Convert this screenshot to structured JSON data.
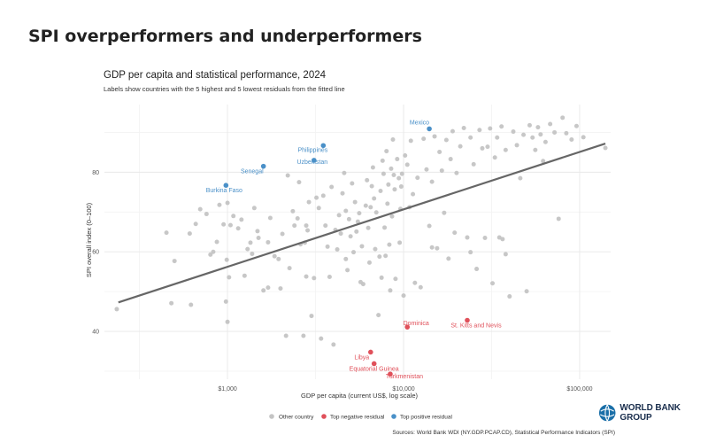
{
  "page": {
    "title": "SPI overperformers and underperformers"
  },
  "brand": {
    "name": "WORLD BANK GROUP",
    "logo_icon": "world-bank-globe-icon",
    "color": "#1a2e4d"
  },
  "chart_data": {
    "type": "scatter",
    "title": "GDP per capita and statistical performance, 2024",
    "subtitle": "Labels show countries with the 5 highest and 5 lowest residuals from the fitted line",
    "xlabel": "GDP per capita (current US$, log scale)",
    "ylabel": "SPI overall index (0–100)",
    "x_scale": "log",
    "xlim": [
      200,
      150000
    ],
    "ylim": [
      28,
      97
    ],
    "x_ticks": [
      {
        "value": 1000,
        "label": "$1,000"
      },
      {
        "value": 10000,
        "label": "$10,000"
      },
      {
        "value": 100000,
        "label": "$100,000"
      }
    ],
    "y_ticks": [
      40,
      60,
      80
    ],
    "grid": true,
    "colors": {
      "other": "#c4c4c4",
      "negative": "#e0505a",
      "positive": "#4a90c8",
      "fit": "#666666"
    },
    "fit_line": {
      "x": [
        240,
        140000
      ],
      "y": [
        47.3,
        87.2
      ]
    },
    "legend": {
      "position": "bottom",
      "entries": [
        {
          "key": "other",
          "label": "Other country"
        },
        {
          "key": "negative",
          "label": "Top negative residual"
        },
        {
          "key": "positive",
          "label": "Top positive residual"
        }
      ]
    },
    "series": [
      {
        "name": "Top positive residual",
        "key": "positive",
        "points": [
          {
            "label": "Mexico",
            "x": 14000,
            "y": 90.9
          },
          {
            "label": "Philippines",
            "x": 3500,
            "y": 86.7
          },
          {
            "label": "Uzbekistan",
            "x": 3100,
            "y": 83.0
          },
          {
            "label": "Senegal",
            "x": 1600,
            "y": 81.5
          },
          {
            "label": "Burkina Faso",
            "x": 980,
            "y": 76.7
          }
        ]
      },
      {
        "name": "Top negative residual",
        "key": "negative",
        "points": [
          {
            "label": "Dominica",
            "x": 10500,
            "y": 41.1
          },
          {
            "label": "St. Kitts and Nevis",
            "x": 23000,
            "y": 42.8
          },
          {
            "label": "Libya",
            "x": 6500,
            "y": 34.8
          },
          {
            "label": "Equatorial Guinea",
            "x": 6800,
            "y": 31.9
          },
          {
            "label": "Turkmenistan",
            "x": 8400,
            "y": 29.3
          }
        ]
      },
      {
        "name": "Other country",
        "key": "other",
        "points": [
          {
            "x": 235,
            "y": 45.6
          },
          {
            "x": 450,
            "y": 64.8
          },
          {
            "x": 480,
            "y": 47.1
          },
          {
            "x": 500,
            "y": 57.7
          },
          {
            "x": 610,
            "y": 64.6
          },
          {
            "x": 620,
            "y": 46.7
          },
          {
            "x": 660,
            "y": 67.0
          },
          {
            "x": 700,
            "y": 70.7
          },
          {
            "x": 760,
            "y": 69.5
          },
          {
            "x": 800,
            "y": 59.3
          },
          {
            "x": 830,
            "y": 60.0
          },
          {
            "x": 870,
            "y": 62.5
          },
          {
            "x": 900,
            "y": 71.8
          },
          {
            "x": 950,
            "y": 66.9
          },
          {
            "x": 980,
            "y": 47.5
          },
          {
            "x": 990,
            "y": 58.0
          },
          {
            "x": 1000,
            "y": 72.3
          },
          {
            "x": 1000,
            "y": 42.4
          },
          {
            "x": 1020,
            "y": 53.6
          },
          {
            "x": 1040,
            "y": 66.7
          },
          {
            "x": 1080,
            "y": 69.0
          },
          {
            "x": 1150,
            "y": 65.9
          },
          {
            "x": 1200,
            "y": 68.1
          },
          {
            "x": 1250,
            "y": 54.0
          },
          {
            "x": 1300,
            "y": 60.7
          },
          {
            "x": 1350,
            "y": 62.3
          },
          {
            "x": 1380,
            "y": 59.5
          },
          {
            "x": 1420,
            "y": 71.0
          },
          {
            "x": 1480,
            "y": 65.2
          },
          {
            "x": 1500,
            "y": 63.5
          },
          {
            "x": 1600,
            "y": 50.3
          },
          {
            "x": 1700,
            "y": 51.0
          },
          {
            "x": 1750,
            "y": 68.5
          },
          {
            "x": 1850,
            "y": 58.9
          },
          {
            "x": 1950,
            "y": 58.2
          },
          {
            "x": 2000,
            "y": 50.8
          },
          {
            "x": 2050,
            "y": 64.5
          },
          {
            "x": 2150,
            "y": 38.9
          },
          {
            "x": 2200,
            "y": 79.2
          },
          {
            "x": 2250,
            "y": 55.9
          },
          {
            "x": 2350,
            "y": 70.2
          },
          {
            "x": 2400,
            "y": 66.6
          },
          {
            "x": 2500,
            "y": 68.4
          },
          {
            "x": 2550,
            "y": 77.5
          },
          {
            "x": 2600,
            "y": 61.9
          },
          {
            "x": 2700,
            "y": 38.9
          },
          {
            "x": 2750,
            "y": 62.3
          },
          {
            "x": 2800,
            "y": 53.8
          },
          {
            "x": 2850,
            "y": 65.4
          },
          {
            "x": 2900,
            "y": 72.5
          },
          {
            "x": 3000,
            "y": 43.9
          },
          {
            "x": 3100,
            "y": 53.4
          },
          {
            "x": 3200,
            "y": 73.6
          },
          {
            "x": 3300,
            "y": 71.0
          },
          {
            "x": 3400,
            "y": 38.2
          },
          {
            "x": 3500,
            "y": 74.1
          },
          {
            "x": 3600,
            "y": 66.6
          },
          {
            "x": 3700,
            "y": 61.3
          },
          {
            "x": 3800,
            "y": 53.7
          },
          {
            "x": 3900,
            "y": 76.3
          },
          {
            "x": 4000,
            "y": 36.7
          },
          {
            "x": 4100,
            "y": 65.5
          },
          {
            "x": 4200,
            "y": 60.6
          },
          {
            "x": 4300,
            "y": 69.2
          },
          {
            "x": 4400,
            "y": 64.6
          },
          {
            "x": 4500,
            "y": 74.7
          },
          {
            "x": 4600,
            "y": 79.8
          },
          {
            "x": 4700,
            "y": 70.3
          },
          {
            "x": 4800,
            "y": 55.4
          },
          {
            "x": 4900,
            "y": 68.2
          },
          {
            "x": 5000,
            "y": 63.9
          },
          {
            "x": 5100,
            "y": 77.2
          },
          {
            "x": 5200,
            "y": 59.9
          },
          {
            "x": 5300,
            "y": 72.5
          },
          {
            "x": 5400,
            "y": 65.1
          },
          {
            "x": 5500,
            "y": 67.6
          },
          {
            "x": 5600,
            "y": 69.7
          },
          {
            "x": 5700,
            "y": 52.4
          },
          {
            "x": 5800,
            "y": 61.4
          },
          {
            "x": 5900,
            "y": 51.9
          },
          {
            "x": 6100,
            "y": 71.6
          },
          {
            "x": 6200,
            "y": 78.0
          },
          {
            "x": 6300,
            "y": 66.0
          },
          {
            "x": 6400,
            "y": 57.3
          },
          {
            "x": 6500,
            "y": 71.2
          },
          {
            "x": 6600,
            "y": 76.5
          },
          {
            "x": 6700,
            "y": 81.2
          },
          {
            "x": 6800,
            "y": 73.4
          },
          {
            "x": 6900,
            "y": 60.7
          },
          {
            "x": 7000,
            "y": 69.9
          },
          {
            "x": 7200,
            "y": 44.1
          },
          {
            "x": 7300,
            "y": 58.8
          },
          {
            "x": 7400,
            "y": 75.3
          },
          {
            "x": 7500,
            "y": 53.5
          },
          {
            "x": 7600,
            "y": 82.9
          },
          {
            "x": 7700,
            "y": 79.6
          },
          {
            "x": 7800,
            "y": 66.1
          },
          {
            "x": 7900,
            "y": 59.0
          },
          {
            "x": 8000,
            "y": 85.3
          },
          {
            "x": 8100,
            "y": 72.1
          },
          {
            "x": 8200,
            "y": 76.9
          },
          {
            "x": 8300,
            "y": 61.8
          },
          {
            "x": 8400,
            "y": 50.3
          },
          {
            "x": 8500,
            "y": 80.9
          },
          {
            "x": 8600,
            "y": 68.9
          },
          {
            "x": 8700,
            "y": 88.2
          },
          {
            "x": 8800,
            "y": 79.3
          },
          {
            "x": 8900,
            "y": 75.7
          },
          {
            "x": 9000,
            "y": 53.2
          },
          {
            "x": 9200,
            "y": 83.3
          },
          {
            "x": 9400,
            "y": 78.5
          },
          {
            "x": 9500,
            "y": 62.3
          },
          {
            "x": 9600,
            "y": 70.8
          },
          {
            "x": 9700,
            "y": 76.4
          },
          {
            "x": 9800,
            "y": 79.6
          },
          {
            "x": 10000,
            "y": 49.0
          },
          {
            "x": 10200,
            "y": 84.2
          },
          {
            "x": 10500,
            "y": 81.9
          },
          {
            "x": 10800,
            "y": 71.2
          },
          {
            "x": 11000,
            "y": 87.9
          },
          {
            "x": 11300,
            "y": 74.5
          },
          {
            "x": 11600,
            "y": 52.2
          },
          {
            "x": 12000,
            "y": 78.6
          },
          {
            "x": 12500,
            "y": 51.1
          },
          {
            "x": 13000,
            "y": 88.4
          },
          {
            "x": 13500,
            "y": 80.7
          },
          {
            "x": 14000,
            "y": 66.5
          },
          {
            "x": 14500,
            "y": 77.6
          },
          {
            "x": 15000,
            "y": 89.0
          },
          {
            "x": 15500,
            "y": 60.9
          },
          {
            "x": 16000,
            "y": 85.1
          },
          {
            "x": 16500,
            "y": 80.4
          },
          {
            "x": 17000,
            "y": 69.8
          },
          {
            "x": 17500,
            "y": 88.1
          },
          {
            "x": 18000,
            "y": 58.3
          },
          {
            "x": 18500,
            "y": 83.3
          },
          {
            "x": 19000,
            "y": 90.3
          },
          {
            "x": 19500,
            "y": 64.8
          },
          {
            "x": 20000,
            "y": 79.8
          },
          {
            "x": 21000,
            "y": 86.5
          },
          {
            "x": 22000,
            "y": 91.1
          },
          {
            "x": 23000,
            "y": 63.6
          },
          {
            "x": 24000,
            "y": 88.7
          },
          {
            "x": 25000,
            "y": 82.0
          },
          {
            "x": 26000,
            "y": 55.7
          },
          {
            "x": 27000,
            "y": 90.6
          },
          {
            "x": 28000,
            "y": 86.0
          },
          {
            "x": 29000,
            "y": 63.5
          },
          {
            "x": 30000,
            "y": 86.4
          },
          {
            "x": 31000,
            "y": 91.0
          },
          {
            "x": 32000,
            "y": 52.1
          },
          {
            "x": 33000,
            "y": 83.7
          },
          {
            "x": 34000,
            "y": 88.7
          },
          {
            "x": 35000,
            "y": 63.6
          },
          {
            "x": 36000,
            "y": 91.5
          },
          {
            "x": 38000,
            "y": 85.6
          },
          {
            "x": 40000,
            "y": 48.8
          },
          {
            "x": 42000,
            "y": 90.2
          },
          {
            "x": 44000,
            "y": 86.8
          },
          {
            "x": 46000,
            "y": 78.5
          },
          {
            "x": 48000,
            "y": 89.4
          },
          {
            "x": 50000,
            "y": 50.1
          },
          {
            "x": 52000,
            "y": 91.8
          },
          {
            "x": 54000,
            "y": 88.7
          },
          {
            "x": 56000,
            "y": 85.6
          },
          {
            "x": 58000,
            "y": 91.3
          },
          {
            "x": 60000,
            "y": 89.5
          },
          {
            "x": 62000,
            "y": 82.8
          },
          {
            "x": 64000,
            "y": 87.6
          },
          {
            "x": 68000,
            "y": 92.1
          },
          {
            "x": 72000,
            "y": 90.0
          },
          {
            "x": 76000,
            "y": 68.3
          },
          {
            "x": 80000,
            "y": 93.7
          },
          {
            "x": 84000,
            "y": 89.8
          },
          {
            "x": 90000,
            "y": 88.2
          },
          {
            "x": 96000,
            "y": 91.6
          },
          {
            "x": 105000,
            "y": 88.8
          },
          {
            "x": 140000,
            "y": 86.1
          },
          {
            "x": 38000,
            "y": 59.4
          },
          {
            "x": 36500,
            "y": 63.2
          },
          {
            "x": 24000,
            "y": 59.9
          },
          {
            "x": 14500,
            "y": 61.1
          },
          {
            "x": 4700,
            "y": 58.2
          },
          {
            "x": 2800,
            "y": 66.6
          },
          {
            "x": 1700,
            "y": 62.4
          }
        ]
      }
    ],
    "source": "Sources: World Bank WDI (NY.GDP.PCAP.CD), Statistical Performance Indicators (SPI)"
  }
}
